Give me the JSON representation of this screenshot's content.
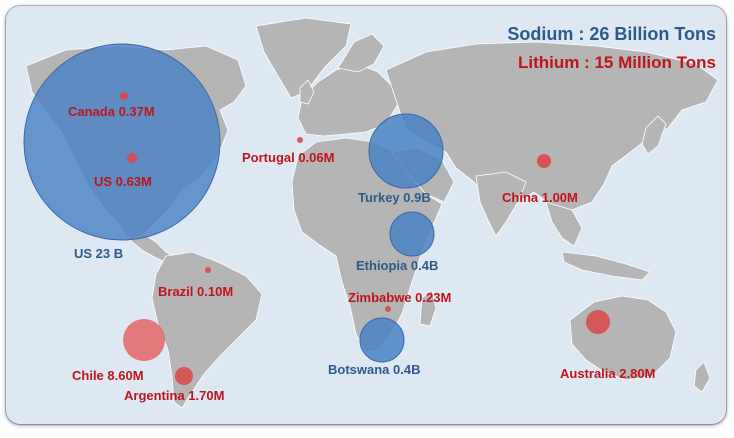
{
  "legend": {
    "sodium": "Sodium : 26 Billion Tons",
    "lithium": "Lithium : 15 Million Tons",
    "sodium_color": "#3f7abf",
    "lithium_color": "#d94848"
  },
  "sodium_deposits": [
    {
      "id": "us",
      "label": "US  23 B"
    },
    {
      "id": "turkey",
      "label": "Turkey  0.9B"
    },
    {
      "id": "ethiopia",
      "label": "Ethiopia  0.4B"
    },
    {
      "id": "botswana",
      "label": "Botswana  0.4B"
    }
  ],
  "lithium_deposits": [
    {
      "id": "canada",
      "label": "Canada  0.37M"
    },
    {
      "id": "us",
      "label": "US  0.63M"
    },
    {
      "id": "portugal",
      "label": "Portugal  0.06M"
    },
    {
      "id": "china",
      "label": "China  1.00M"
    },
    {
      "id": "brazil",
      "label": "Brazil  0.10M"
    },
    {
      "id": "zimbabwe",
      "label": "Zimbabwe  0.23M"
    },
    {
      "id": "chile",
      "label": "Chile  8.60M"
    },
    {
      "id": "argentina",
      "label": "Argentina 1.70M"
    },
    {
      "id": "australia",
      "label": "Australia 2.80M"
    }
  ]
}
